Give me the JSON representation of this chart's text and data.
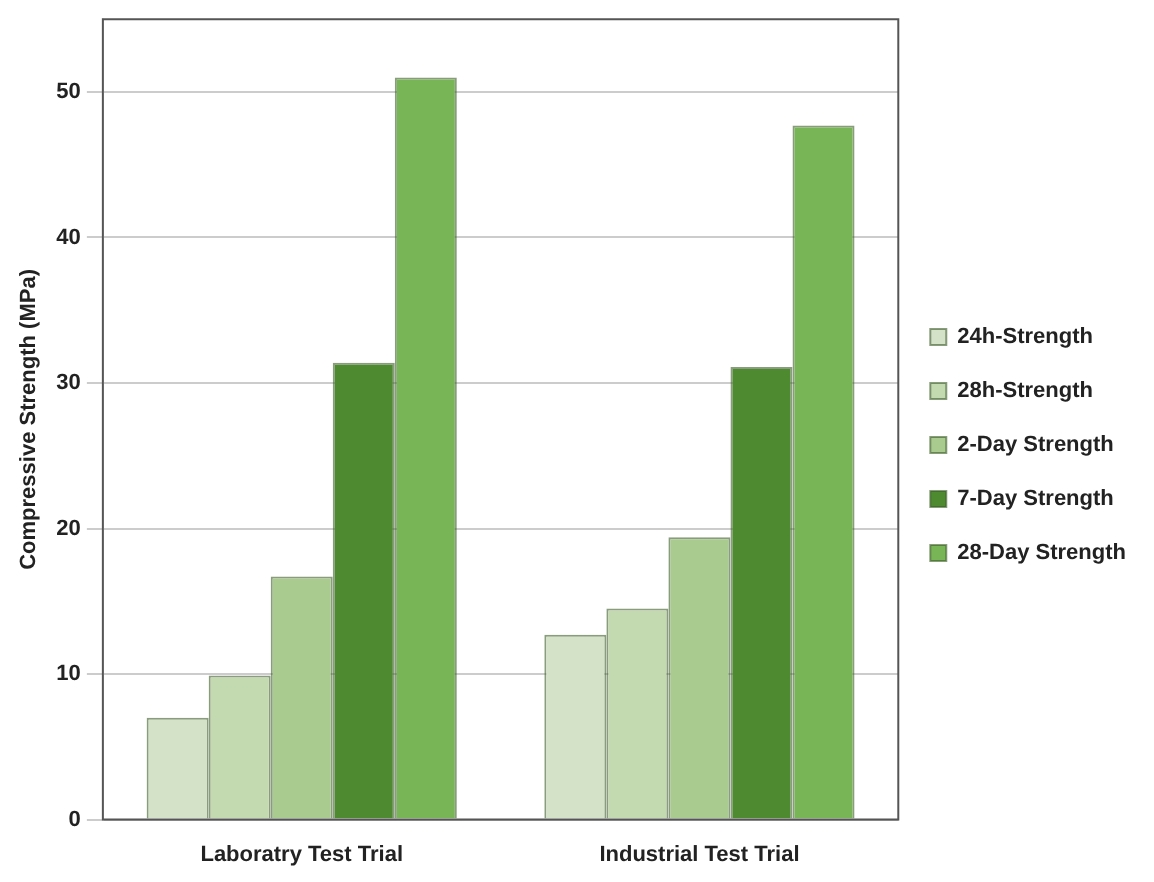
{
  "chart_data": {
    "type": "bar",
    "ylabel": "Compressive Strength (MPa)",
    "categories": [
      "Laboratry Test Trial",
      "Industrial Test Trial"
    ],
    "series": [
      {
        "name": "24h-Strength",
        "color": "#d4e3c8",
        "values": [
          7.0,
          12.7
        ]
      },
      {
        "name": "28h-Strength",
        "color": "#c3d9b0",
        "values": [
          9.9,
          14.5
        ]
      },
      {
        "name": "2-Day Strength",
        "color": "#a9cb8f",
        "values": [
          16.7,
          19.4
        ]
      },
      {
        "name": "7-Day Strength",
        "color": "#4e8a2f",
        "values": [
          31.4,
          31.1
        ]
      },
      {
        "name": "28-Day Strength",
        "color": "#78b556",
        "values": [
          51.0,
          47.7
        ]
      }
    ],
    "ylim": [
      0,
      55
    ],
    "yticks": [
      0,
      10,
      20,
      30,
      40,
      50
    ],
    "grid": "y",
    "legend": "right"
  }
}
